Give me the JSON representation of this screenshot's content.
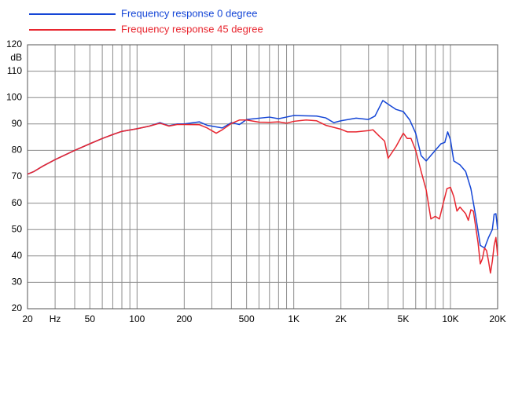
{
  "chart_data": {
    "type": "line",
    "x_unit_label": "Hz",
    "y_unit_label": "dB",
    "xscale": "log",
    "xlim": [
      20,
      20000
    ],
    "ylim": [
      20,
      120
    ],
    "xticks": [
      20,
      50,
      100,
      200,
      500,
      {
        "value": 1000,
        "label": "1K"
      },
      {
        "value": 2000,
        "label": "2K"
      },
      {
        "value": 5000,
        "label": "5K"
      },
      {
        "value": 10000,
        "label": "10K"
      },
      {
        "value": 20000,
        "label": "20K"
      }
    ],
    "x_unit_at": 30,
    "xminor": [
      30,
      40,
      60,
      70,
      80,
      90,
      300,
      400,
      600,
      700,
      800,
      900,
      3000,
      4000,
      6000,
      7000,
      8000,
      9000
    ],
    "yticks": [
      20,
      30,
      40,
      50,
      60,
      70,
      80,
      90,
      100,
      110,
      120
    ],
    "grid": true,
    "legend": "top-left",
    "series": [
      {
        "name": "Frequency response 0 degree",
        "color": "#1546d6",
        "x": [
          20,
          22,
          25,
          30,
          40,
          50,
          60,
          70,
          80,
          100,
          120,
          140,
          160,
          180,
          200,
          250,
          280,
          350,
          400,
          450,
          500,
          700,
          800,
          1000,
          1400,
          1600,
          1800,
          2000,
          2500,
          3000,
          3300,
          3700,
          4000,
          4500,
          5000,
          5500,
          6000,
          6500,
          7000,
          8000,
          8700,
          9200,
          9600,
          10000,
          10500,
          11500,
          12500,
          13500,
          14500,
          15500,
          16500,
          17500,
          18500,
          19000,
          19500,
          20000
        ],
        "values": [
          71,
          72,
          74,
          76.5,
          80,
          82.5,
          84.5,
          86,
          87.2,
          88.2,
          89.2,
          90.5,
          89.3,
          90,
          90,
          90.8,
          89.5,
          88.5,
          90.5,
          89.8,
          91.7,
          92.6,
          92,
          93.2,
          93,
          92.3,
          90.5,
          91.2,
          92.2,
          91.7,
          93,
          98.9,
          97.5,
          95.5,
          94.7,
          91.5,
          86.5,
          78,
          76,
          80,
          82.5,
          83,
          87,
          84,
          76,
          74.5,
          72,
          65.5,
          55,
          44,
          43,
          47,
          50,
          55.8,
          56,
          50
        ]
      },
      {
        "name": "Frequency response 45 degree",
        "color": "#e8262f",
        "x": [
          20,
          22,
          25,
          30,
          40,
          50,
          60,
          70,
          80,
          100,
          120,
          140,
          160,
          180,
          200,
          250,
          280,
          320,
          350,
          400,
          450,
          500,
          600,
          700,
          800,
          900,
          1000,
          1200,
          1400,
          1600,
          2000,
          2200,
          2500,
          3000,
          3200,
          3500,
          3800,
          4000,
          4500,
          5000,
          5300,
          5600,
          6000,
          6500,
          7000,
          7500,
          8000,
          8500,
          9000,
          9500,
          10000,
          10500,
          11000,
          11500,
          12500,
          13000,
          13500,
          14000,
          15000,
          15500,
          16000,
          16500,
          17000,
          17500,
          18000,
          18500,
          19000,
          19500,
          20000
        ],
        "values": [
          71,
          72,
          74,
          76.5,
          80,
          82.5,
          84.5,
          86,
          87.2,
          88.2,
          89.2,
          90.3,
          89.2,
          89.8,
          89.8,
          89.7,
          88.5,
          86.5,
          87.8,
          90.2,
          91.5,
          91.5,
          90.7,
          90.6,
          90.8,
          90.3,
          91,
          91.5,
          91.2,
          89.5,
          88,
          87,
          87,
          87.5,
          87.8,
          85.5,
          83.5,
          77,
          81.5,
          86.5,
          84.5,
          84.5,
          80,
          72,
          65,
          54,
          55,
          54,
          60,
          65.5,
          66,
          62.5,
          57,
          58.5,
          56,
          53.5,
          57.5,
          57,
          45,
          37,
          39,
          43,
          42,
          38,
          33.5,
          38,
          44,
          47,
          40
        ]
      }
    ]
  }
}
